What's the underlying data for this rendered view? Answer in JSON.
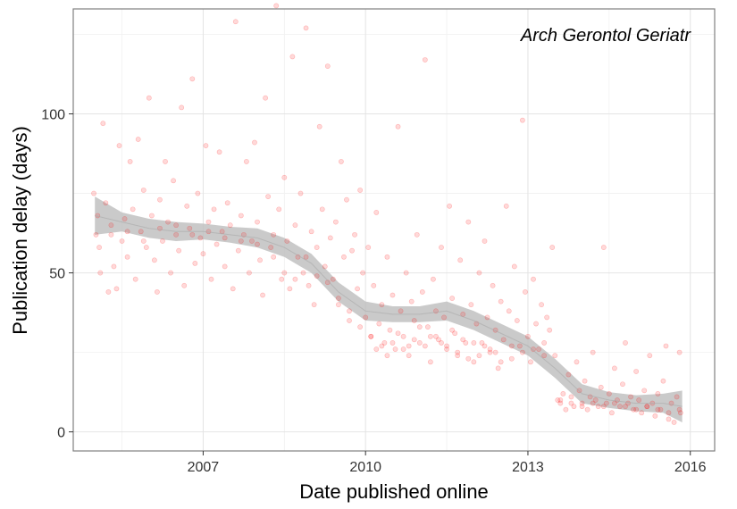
{
  "chart_data": {
    "type": "scatter",
    "title": "",
    "annotation": "Arch Gerontol Geriatr",
    "xlabel": "Date published online",
    "ylabel": "Publication delay (days)",
    "xlim": [
      2004.6,
      2016.45
    ],
    "ylim": [
      -6,
      133
    ],
    "x_ticks": [
      2007,
      2010,
      2013,
      2016
    ],
    "y_ticks": [
      0,
      50,
      100
    ],
    "grid": true,
    "legend": "none",
    "point_color": "#ff0000",
    "point_alpha": 0.15,
    "band_color": "#bdbdbd",
    "trend": {
      "x": [
        2005.0,
        2005.5,
        2006.0,
        2006.5,
        2007.0,
        2007.5,
        2008.0,
        2008.5,
        2009.0,
        2009.5,
        2010.0,
        2010.5,
        2011.0,
        2011.5,
        2012.0,
        2012.5,
        2013.0,
        2013.5,
        2014.0,
        2014.5,
        2015.0,
        2015.5,
        2015.85
      ],
      "y": [
        68,
        66,
        64,
        63,
        63,
        62,
        61,
        58,
        53,
        44,
        38,
        37,
        37,
        38,
        35,
        31,
        27,
        20,
        12,
        10,
        9,
        9,
        8
      ],
      "band": [
        6,
        3,
        3,
        3,
        2.5,
        2.5,
        3,
        3,
        3,
        3,
        3,
        2.5,
        2.5,
        3,
        3,
        3,
        3,
        3,
        3,
        2.5,
        2.5,
        3,
        5
      ]
    },
    "points": [
      [
        2004.98,
        75
      ],
      [
        2005.02,
        62
      ],
      [
        2005.05,
        68
      ],
      [
        2005.08,
        58
      ],
      [
        2005.1,
        50
      ],
      [
        2005.15,
        97
      ],
      [
        2005.2,
        72
      ],
      [
        2005.25,
        44
      ],
      [
        2005.3,
        65
      ],
      [
        2005.35,
        52
      ],
      [
        2005.4,
        45
      ],
      [
        2005.45,
        90
      ],
      [
        2005.5,
        60
      ],
      [
        2005.55,
        67
      ],
      [
        2005.6,
        55
      ],
      [
        2005.65,
        85
      ],
      [
        2005.7,
        70
      ],
      [
        2005.75,
        48
      ],
      [
        2005.8,
        92
      ],
      [
        2005.85,
        63
      ],
      [
        2005.9,
        76
      ],
      [
        2005.95,
        58
      ],
      [
        2006.0,
        105
      ],
      [
        2006.05,
        68
      ],
      [
        2006.1,
        54
      ],
      [
        2006.15,
        44
      ],
      [
        2006.2,
        73
      ],
      [
        2006.25,
        60
      ],
      [
        2006.3,
        85
      ],
      [
        2006.35,
        66
      ],
      [
        2006.4,
        50
      ],
      [
        2006.45,
        79
      ],
      [
        2006.5,
        62
      ],
      [
        2006.55,
        57
      ],
      [
        2006.6,
        102
      ],
      [
        2006.65,
        46
      ],
      [
        2006.7,
        71
      ],
      [
        2006.75,
        64
      ],
      [
        2006.8,
        111
      ],
      [
        2006.85,
        53
      ],
      [
        2006.9,
        75
      ],
      [
        2006.95,
        61
      ],
      [
        2007.0,
        56
      ],
      [
        2007.05,
        90
      ],
      [
        2007.1,
        66
      ],
      [
        2007.15,
        48
      ],
      [
        2007.2,
        70
      ],
      [
        2007.25,
        59
      ],
      [
        2007.3,
        88
      ],
      [
        2007.35,
        63
      ],
      [
        2007.4,
        52
      ],
      [
        2007.45,
        72
      ],
      [
        2007.5,
        65
      ],
      [
        2007.55,
        45
      ],
      [
        2007.6,
        129
      ],
      [
        2007.65,
        57
      ],
      [
        2007.7,
        68
      ],
      [
        2007.75,
        62
      ],
      [
        2007.8,
        85
      ],
      [
        2007.85,
        50
      ],
      [
        2007.9,
        60
      ],
      [
        2007.95,
        91
      ],
      [
        2008.0,
        66
      ],
      [
        2008.05,
        54
      ],
      [
        2008.1,
        43
      ],
      [
        2008.15,
        105
      ],
      [
        2008.2,
        74
      ],
      [
        2008.25,
        58
      ],
      [
        2008.3,
        62
      ],
      [
        2008.35,
        134
      ],
      [
        2008.4,
        70
      ],
      [
        2008.45,
        48
      ],
      [
        2008.5,
        80
      ],
      [
        2008.55,
        60
      ],
      [
        2008.6,
        45
      ],
      [
        2008.65,
        118
      ],
      [
        2008.7,
        65
      ],
      [
        2008.75,
        55
      ],
      [
        2008.8,
        75
      ],
      [
        2008.85,
        50
      ],
      [
        2008.9,
        127
      ],
      [
        2008.95,
        46
      ],
      [
        2009.0,
        63
      ],
      [
        2009.05,
        40
      ],
      [
        2009.1,
        58
      ],
      [
        2009.15,
        96
      ],
      [
        2009.2,
        70
      ],
      [
        2009.25,
        52
      ],
      [
        2009.3,
        115
      ],
      [
        2009.35,
        61
      ],
      [
        2009.4,
        48
      ],
      [
        2009.45,
        66
      ],
      [
        2009.5,
        42
      ],
      [
        2009.55,
        85
      ],
      [
        2009.6,
        55
      ],
      [
        2009.65,
        73
      ],
      [
        2009.7,
        38
      ],
      [
        2009.75,
        57
      ],
      [
        2009.8,
        62
      ],
      [
        2009.85,
        45
      ],
      [
        2009.9,
        76
      ],
      [
        2009.95,
        50
      ],
      [
        2010.0,
        36
      ],
      [
        2010.05,
        58
      ],
      [
        2010.1,
        30
      ],
      [
        2010.15,
        46
      ],
      [
        2010.2,
        69
      ],
      [
        2010.25,
        34
      ],
      [
        2010.3,
        40
      ],
      [
        2010.35,
        28
      ],
      [
        2010.4,
        55
      ],
      [
        2010.45,
        32
      ],
      [
        2010.5,
        43
      ],
      [
        2010.55,
        26
      ],
      [
        2010.6,
        96
      ],
      [
        2010.65,
        38
      ],
      [
        2010.7,
        30
      ],
      [
        2010.75,
        50
      ],
      [
        2010.8,
        24
      ],
      [
        2010.85,
        41
      ],
      [
        2010.9,
        35
      ],
      [
        2010.95,
        62
      ],
      [
        2011.0,
        28
      ],
      [
        2011.05,
        44
      ],
      [
        2011.1,
        117
      ],
      [
        2011.15,
        33
      ],
      [
        2011.2,
        22
      ],
      [
        2011.25,
        48
      ],
      [
        2011.3,
        38
      ],
      [
        2011.35,
        29
      ],
      [
        2011.4,
        58
      ],
      [
        2011.45,
        36
      ],
      [
        2011.5,
        26
      ],
      [
        2011.55,
        71
      ],
      [
        2011.6,
        42
      ],
      [
        2011.65,
        31
      ],
      [
        2011.7,
        24
      ],
      [
        2011.75,
        54
      ],
      [
        2011.8,
        37
      ],
      [
        2011.85,
        28
      ],
      [
        2011.9,
        66
      ],
      [
        2011.95,
        40
      ],
      [
        2012.0,
        22
      ],
      [
        2012.05,
        34
      ],
      [
        2012.1,
        50
      ],
      [
        2012.15,
        28
      ],
      [
        2012.2,
        60
      ],
      [
        2012.25,
        36
      ],
      [
        2012.3,
        25
      ],
      [
        2012.35,
        46
      ],
      [
        2012.4,
        32
      ],
      [
        2012.45,
        20
      ],
      [
        2012.5,
        41
      ],
      [
        2012.55,
        29
      ],
      [
        2012.6,
        71
      ],
      [
        2012.65,
        38
      ],
      [
        2012.7,
        23
      ],
      [
        2012.75,
        52
      ],
      [
        2012.8,
        35
      ],
      [
        2012.85,
        27
      ],
      [
        2012.9,
        98
      ],
      [
        2012.95,
        44
      ],
      [
        2013.0,
        30
      ],
      [
        2013.05,
        22
      ],
      [
        2013.1,
        48
      ],
      [
        2013.15,
        34
      ],
      [
        2013.2,
        26
      ],
      [
        2013.25,
        40
      ],
      [
        2013.3,
        28
      ],
      [
        2013.35,
        36
      ],
      [
        2013.4,
        32
      ],
      [
        2013.45,
        58
      ],
      [
        2013.5,
        24
      ],
      [
        2013.55,
        10
      ],
      [
        2013.6,
        9
      ],
      [
        2013.65,
        12
      ],
      [
        2013.7,
        7
      ],
      [
        2013.75,
        18
      ],
      [
        2013.8,
        11
      ],
      [
        2013.85,
        8
      ],
      [
        2013.9,
        22
      ],
      [
        2013.95,
        13
      ],
      [
        2014.0,
        9
      ],
      [
        2014.05,
        16
      ],
      [
        2014.1,
        7
      ],
      [
        2014.15,
        11
      ],
      [
        2014.2,
        25
      ],
      [
        2014.25,
        10
      ],
      [
        2014.3,
        8
      ],
      [
        2014.35,
        14
      ],
      [
        2014.4,
        58
      ],
      [
        2014.45,
        9
      ],
      [
        2014.5,
        12
      ],
      [
        2014.55,
        6
      ],
      [
        2014.6,
        20
      ],
      [
        2014.65,
        10
      ],
      [
        2014.7,
        8
      ],
      [
        2014.75,
        15
      ],
      [
        2014.8,
        28
      ],
      [
        2014.85,
        9
      ],
      [
        2014.9,
        11
      ],
      [
        2014.95,
        7
      ],
      [
        2015.0,
        19
      ],
      [
        2015.05,
        10
      ],
      [
        2015.1,
        6
      ],
      [
        2015.15,
        13
      ],
      [
        2015.2,
        8
      ],
      [
        2015.25,
        24
      ],
      [
        2015.3,
        9
      ],
      [
        2015.35,
        5
      ],
      [
        2015.4,
        12
      ],
      [
        2015.45,
        7
      ],
      [
        2015.5,
        16
      ],
      [
        2015.55,
        27
      ],
      [
        2015.6,
        4
      ],
      [
        2015.65,
        9
      ],
      [
        2015.7,
        3
      ],
      [
        2015.75,
        11
      ],
      [
        2015.8,
        25
      ],
      [
        2015.82,
        6
      ],
      [
        2005.3,
        62
      ],
      [
        2005.6,
        63
      ],
      [
        2005.9,
        60
      ],
      [
        2006.2,
        64
      ],
      [
        2006.5,
        65
      ],
      [
        2006.8,
        62
      ],
      [
        2007.1,
        63
      ],
      [
        2007.4,
        61
      ],
      [
        2007.7,
        60
      ],
      [
        2008.0,
        59
      ],
      [
        2008.3,
        55
      ],
      [
        2008.5,
        50
      ],
      [
        2008.7,
        48
      ],
      [
        2008.9,
        55
      ],
      [
        2009.1,
        49
      ],
      [
        2009.3,
        47
      ],
      [
        2009.5,
        40
      ],
      [
        2009.7,
        35
      ],
      [
        2009.9,
        33
      ],
      [
        2010.1,
        30
      ],
      [
        2010.3,
        27
      ],
      [
        2010.5,
        28
      ],
      [
        2010.7,
        26
      ],
      [
        2010.9,
        29
      ],
      [
        2011.1,
        27
      ],
      [
        2011.3,
        30
      ],
      [
        2011.5,
        27
      ],
      [
        2011.7,
        25
      ],
      [
        2011.9,
        23
      ],
      [
        2012.1,
        24
      ],
      [
        2012.3,
        26
      ],
      [
        2012.5,
        22
      ],
      [
        2012.7,
        27
      ],
      [
        2012.9,
        25
      ],
      [
        2013.1,
        26
      ],
      [
        2013.3,
        24
      ],
      [
        2013.6,
        10
      ],
      [
        2013.8,
        9
      ],
      [
        2014.0,
        8
      ],
      [
        2014.2,
        9
      ],
      [
        2014.4,
        8
      ],
      [
        2014.6,
        9
      ],
      [
        2014.8,
        8
      ],
      [
        2015.0,
        7
      ],
      [
        2015.2,
        8
      ],
      [
        2015.4,
        7
      ],
      [
        2015.6,
        6
      ],
      [
        2015.8,
        7
      ],
      [
        2010.2,
        26
      ],
      [
        2010.4,
        24
      ],
      [
        2010.6,
        31
      ],
      [
        2010.8,
        27
      ],
      [
        2011.0,
        33
      ],
      [
        2011.2,
        30
      ],
      [
        2011.4,
        28
      ],
      [
        2011.6,
        32
      ],
      [
        2011.8,
        29
      ],
      [
        2012.0,
        28
      ],
      [
        2012.2,
        27
      ],
      [
        2012.4,
        25
      ]
    ]
  }
}
